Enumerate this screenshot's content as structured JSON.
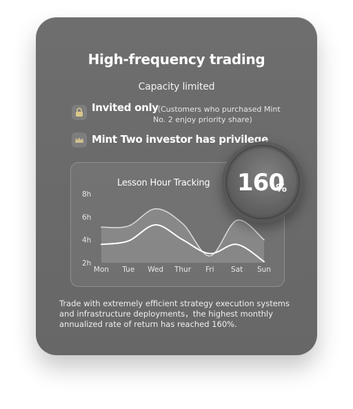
{
  "card": {
    "title": "High-frequency trading",
    "subtitle": "Capacity limited",
    "rows": [
      {
        "icon": "lock-icon",
        "title": "Invited only",
        "note": "（Customers who purchased Mint No. 2 enjoy priority share)"
      },
      {
        "icon": "crown-icon",
        "title": "Mint Two investor has privilege"
      }
    ],
    "description": "Trade with extremely efficient strategy execution systems and infrastructure deployments，the highest monthly annualized rate of return has reached 160%."
  },
  "gauge": {
    "value": "160",
    "unit": "%"
  },
  "chart_data": {
    "type": "line",
    "title": "Lesson Hour Tracking",
    "categories": [
      "Mon",
      "Tue",
      "Wed",
      "Thur",
      "Fri",
      "Sat",
      "Sun"
    ],
    "y_ticks": [
      "8h",
      "6h",
      "4h",
      "2h"
    ],
    "ylim": [
      2,
      8
    ],
    "series": [
      {
        "values": [
          5.1,
          5.2,
          6.7,
          5.4,
          2.6,
          5.7,
          4.0
        ]
      },
      {
        "values": [
          3.6,
          3.9,
          5.3,
          4.0,
          2.8,
          3.6,
          2.1
        ]
      }
    ]
  }
}
